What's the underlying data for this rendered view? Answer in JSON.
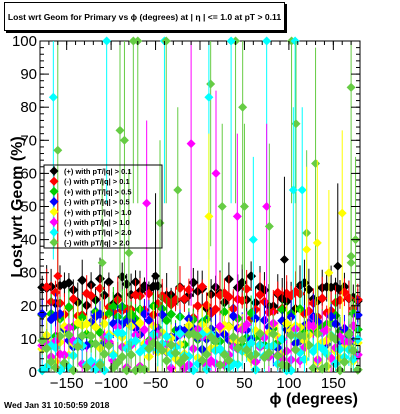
{
  "chart_data": {
    "type": "scatter",
    "title": "Lost wrt Geom for Primary vs ϕ (degrees) at | η | <= 1.0 at pT > 0.11",
    "xlabel": "ϕ (degrees)",
    "ylabel": "Lost wrt Geom (%)",
    "xlim": [
      -180,
      180
    ],
    "ylim": [
      0,
      100
    ],
    "xticks": [
      -150,
      -100,
      -50,
      0,
      50,
      100,
      150
    ],
    "yticks": [
      0,
      10,
      20,
      30,
      40,
      50,
      60,
      70,
      80,
      90,
      100
    ],
    "grid": false,
    "legend_position": "middle-left",
    "series": [
      {
        "name": "(+) with pT/|q| > 0.1",
        "color": "#000000",
        "marker": "diamond",
        "y_base": 24,
        "y_spread": 5,
        "bins": 72
      },
      {
        "name": "(-) with pT/|q| > 0.1",
        "color": "#ff0000",
        "marker": "diamond",
        "y_base": 21,
        "y_spread": 5,
        "bins": 72
      },
      {
        "name": "(+) with pT/|q| > 0.5",
        "color": "#00cc00",
        "marker": "diamond",
        "y_base": 14,
        "y_spread": 6,
        "bins": 72
      },
      {
        "name": "(-) with pT/|q| > 0.5",
        "color": "#0000ff",
        "marker": "diamond",
        "y_base": 12,
        "y_spread": 6,
        "bins": 72
      },
      {
        "name": "(+) with pT/|q| > 1.0",
        "color": "#ffff00",
        "marker": "diamond",
        "y_base": 9,
        "y_spread": 6,
        "bins": 72
      },
      {
        "name": "(-) with pT/|q| > 1.0",
        "color": "#ff00ff",
        "marker": "diamond",
        "y_base": 8,
        "y_spread": 7,
        "bins": 72
      },
      {
        "name": "(+) with pT/|q| > 2.0",
        "color": "#00ffff",
        "marker": "diamond",
        "y_base": 6,
        "y_spread": 6,
        "bins": 72
      },
      {
        "name": "(-) with pT/|q| > 2.0",
        "color": "#66cc44",
        "marker": "diamond",
        "y_base": 6,
        "y_spread": 6,
        "bins": 72
      }
    ],
    "outliers": [
      {
        "series": 6,
        "x": -165,
        "y": 83
      },
      {
        "series": 7,
        "x": -160,
        "y": 67
      },
      {
        "series": 6,
        "x": -105,
        "y": 100
      },
      {
        "series": 7,
        "x": -75,
        "y": 100
      },
      {
        "series": 7,
        "x": -70,
        "y": 100
      },
      {
        "series": 6,
        "x": -40,
        "y": 100
      },
      {
        "series": 7,
        "x": -38,
        "y": 100
      },
      {
        "series": 7,
        "x": -90,
        "y": 73
      },
      {
        "series": 7,
        "x": -85,
        "y": 70
      },
      {
        "series": 7,
        "x": 12,
        "y": 87
      },
      {
        "series": 6,
        "x": 10,
        "y": 83
      },
      {
        "series": 7,
        "x": 40,
        "y": 100
      },
      {
        "series": 6,
        "x": 35,
        "y": 100
      },
      {
        "series": 7,
        "x": 48,
        "y": 80
      },
      {
        "series": 5,
        "x": 18,
        "y": 60
      },
      {
        "series": 5,
        "x": -10,
        "y": 69
      },
      {
        "series": 6,
        "x": 75,
        "y": 100
      },
      {
        "series": 7,
        "x": 103,
        "y": 100
      },
      {
        "series": 6,
        "x": 107,
        "y": 100
      },
      {
        "series": 7,
        "x": 108,
        "y": 75
      },
      {
        "series": 7,
        "x": 130,
        "y": 63
      },
      {
        "series": 7,
        "x": 170,
        "y": 86
      },
      {
        "series": 6,
        "x": 115,
        "y": 55
      },
      {
        "series": 6,
        "x": 105,
        "y": 55
      },
      {
        "series": 7,
        "x": 175,
        "y": 40
      },
      {
        "series": 4,
        "x": 160,
        "y": 48
      },
      {
        "series": 7,
        "x": -25,
        "y": 55
      },
      {
        "series": 5,
        "x": -60,
        "y": 51
      },
      {
        "series": 7,
        "x": -45,
        "y": 45
      },
      {
        "series": 4,
        "x": 10,
        "y": 47
      },
      {
        "series": 7,
        "x": 25,
        "y": 50
      },
      {
        "series": 5,
        "x": 42,
        "y": 47
      },
      {
        "series": 7,
        "x": 50,
        "y": 50
      },
      {
        "series": 5,
        "x": 75,
        "y": 50
      },
      {
        "series": 7,
        "x": 78,
        "y": 44
      },
      {
        "series": 4,
        "x": 132,
        "y": 39
      },
      {
        "series": 7,
        "x": 120,
        "y": 42
      },
      {
        "series": 6,
        "x": 60,
        "y": 40
      },
      {
        "series": 7,
        "x": -110,
        "y": 33
      },
      {
        "series": 7,
        "x": -80,
        "y": 36
      },
      {
        "series": 4,
        "x": 120,
        "y": 37
      },
      {
        "series": 7,
        "x": 170,
        "y": 35
      },
      {
        "series": 0,
        "x": 95,
        "y": 34
      },
      {
        "series": 0,
        "x": 155,
        "y": 32
      },
      {
        "series": 4,
        "x": 145,
        "y": 30
      },
      {
        "series": 1,
        "x": -160,
        "y": 29
      },
      {
        "series": 0,
        "x": -50,
        "y": 29
      },
      {
        "series": 7,
        "x": 170,
        "y": 33
      }
    ]
  },
  "footer": {
    "timestamp": "Wed Jan 31 10:50:59 2018"
  }
}
